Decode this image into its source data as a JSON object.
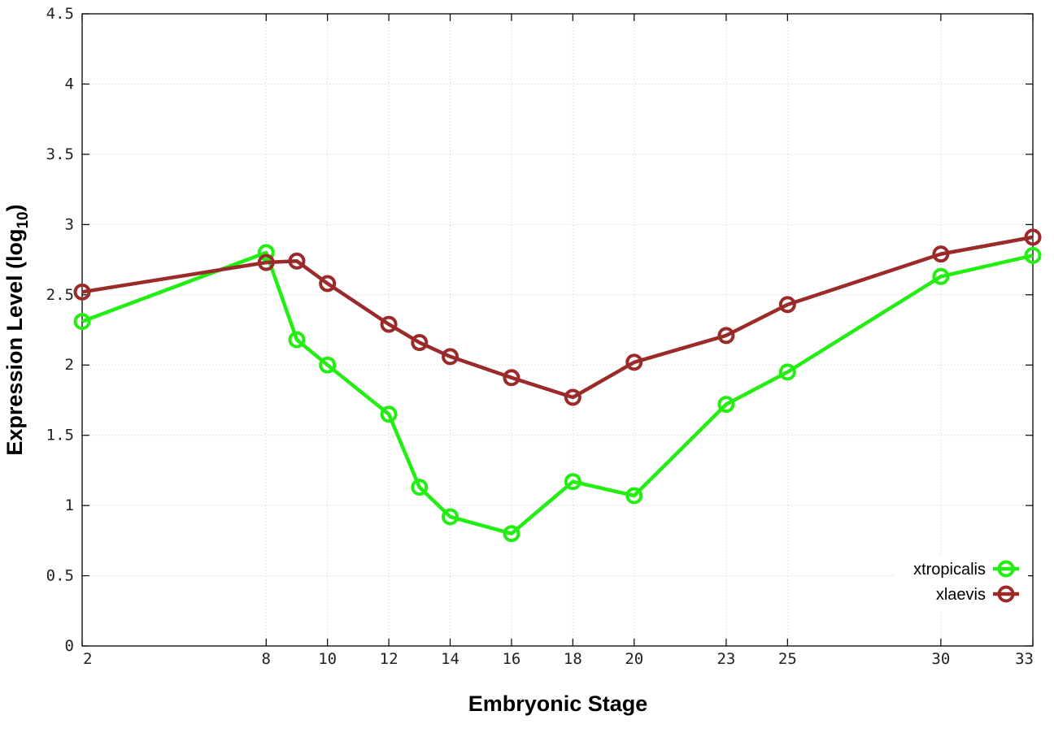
{
  "chart_data": {
    "type": "line",
    "title": "",
    "xlabel": "Embryonic Stage",
    "ylabel": {
      "main": "Expression Level (log",
      "sub": "10",
      "close": ")"
    },
    "x": [
      2,
      8,
      9,
      10,
      12,
      13,
      14,
      16,
      18,
      20,
      23,
      25,
      30,
      33
    ],
    "x_ticks": [
      "2",
      "8",
      "10",
      "12",
      "14",
      "16",
      "18",
      "20",
      "23",
      "25",
      "30",
      "33"
    ],
    "y_ticks": [
      "0",
      "0.5",
      "1",
      "1.5",
      "2",
      "2.5",
      "3",
      "3.5",
      "4",
      "4.5"
    ],
    "xlim": [
      2,
      33
    ],
    "ylim": [
      0,
      4.5
    ],
    "grid": true,
    "legend_position": "bottom-right",
    "series": [
      {
        "name": "xtropicalis",
        "color": "#22ee11",
        "marker": "open-circle",
        "values": [
          2.31,
          2.8,
          2.18,
          2.0,
          1.65,
          1.13,
          0.92,
          0.8,
          1.17,
          1.07,
          1.72,
          1.95,
          2.63,
          2.78
        ]
      },
      {
        "name": "xlaevis",
        "color": "#9b2a2a",
        "marker": "open-circle",
        "values": [
          2.52,
          2.73,
          2.74,
          2.58,
          2.29,
          2.16,
          2.06,
          1.91,
          1.77,
          2.02,
          2.21,
          2.43,
          2.79,
          2.91
        ]
      }
    ]
  }
}
